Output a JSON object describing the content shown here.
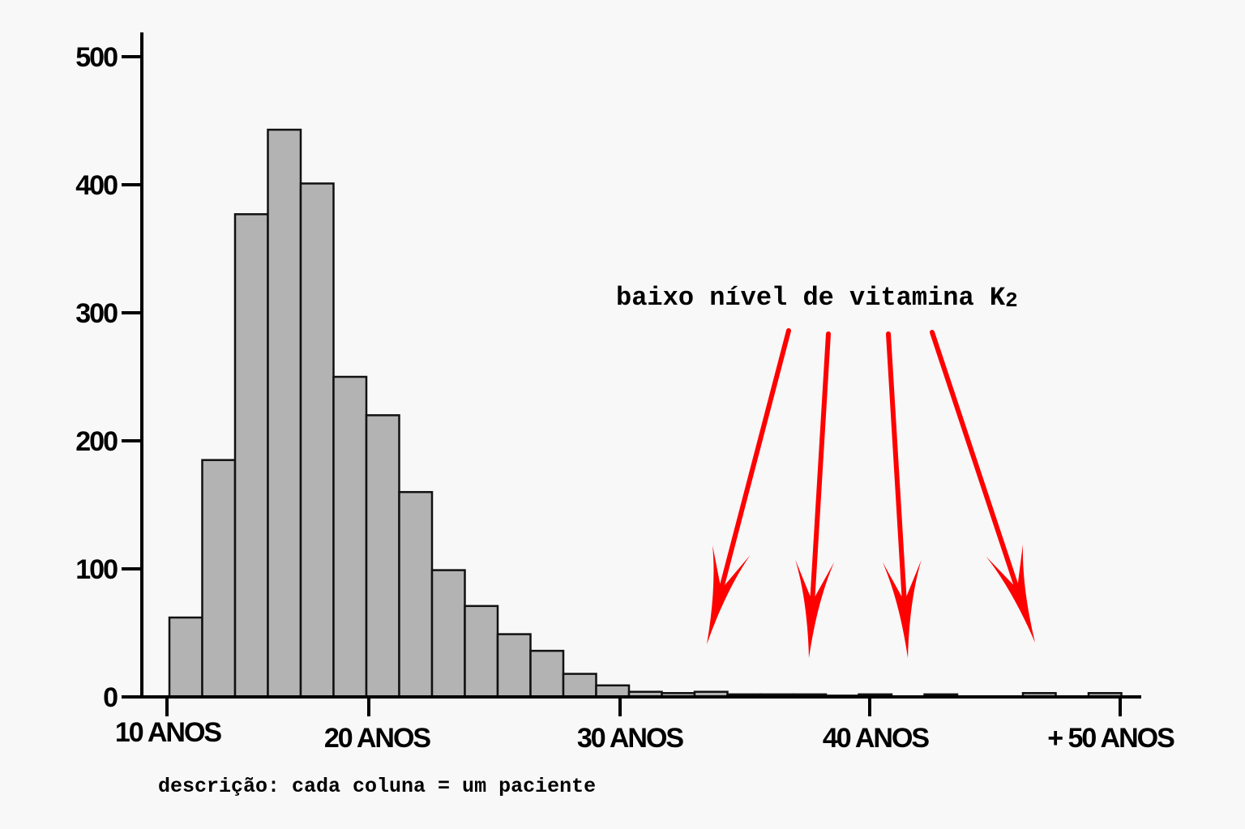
{
  "chart_data": {
    "type": "bar",
    "title": "",
    "xlabel": "",
    "ylabel": "",
    "ylim": [
      0,
      500
    ],
    "yticks": [
      0,
      100,
      200,
      300,
      400,
      500
    ],
    "x_tick_labels": [
      "10 ANOS",
      "20 ANOS",
      "30 ANOS",
      "40 ANOS",
      "+ 50 ANOS"
    ],
    "bin_start_age": 10.5,
    "bin_width_years": 1.3,
    "values": [
      62,
      185,
      377,
      443,
      401,
      250,
      220,
      160,
      99,
      71,
      49,
      36,
      18,
      9,
      4,
      3,
      4,
      2,
      2,
      2,
      1,
      2,
      0,
      2,
      0,
      0,
      3,
      0,
      3
    ],
    "bar_color": "#b3b3b3",
    "grid": false,
    "legend": "none"
  },
  "annotation": {
    "text": "baixo nível de vitamina K",
    "subscript": "2",
    "arrow_color": "#ff0000",
    "arrow_count": 4
  },
  "description": "descrição: cada coluna = um paciente"
}
